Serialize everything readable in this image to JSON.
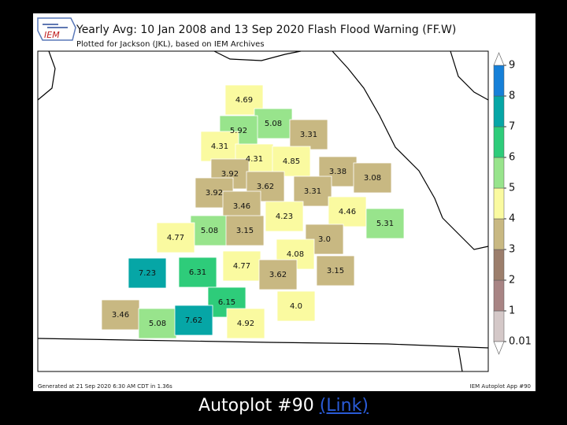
{
  "header": {
    "title": "Yearly Avg: 10 Jan 2008 and 13 Sep 2020 Flash Flood Warning (FF.W)",
    "subtitle": "Plotted for Jackson (JKL), based on IEM Archives",
    "logo": "IEM"
  },
  "map": {
    "counties": [
      {
        "label": "4.69",
        "color": "#fafaa0"
      },
      {
        "label": "5.08",
        "color": "#98e48c"
      },
      {
        "label": "5.92",
        "color": "#98e48c"
      },
      {
        "label": "3.31",
        "color": "#c8b882"
      },
      {
        "label": "4.31",
        "color": "#fafaa0"
      },
      {
        "label": "4.31",
        "color": "#fafaa0"
      },
      {
        "label": "4.85",
        "color": "#fafaa0"
      },
      {
        "label": "3.38",
        "color": "#c8b882"
      },
      {
        "label": "3.08",
        "color": "#c8b882"
      },
      {
        "label": "3.92",
        "color": "#c8b882"
      },
      {
        "label": "3.62",
        "color": "#c8b882"
      },
      {
        "label": "3.92",
        "color": "#c8b882"
      },
      {
        "label": "3.31",
        "color": "#c8b882"
      },
      {
        "label": "3.46",
        "color": "#c8b882"
      },
      {
        "label": "4.23",
        "color": "#fafaa0"
      },
      {
        "label": "4.46",
        "color": "#fafaa0"
      },
      {
        "label": "5.31",
        "color": "#98e48c"
      },
      {
        "label": "5.08",
        "color": "#98e48c"
      },
      {
        "label": "3.15",
        "color": "#c8b882"
      },
      {
        "label": "4.77",
        "color": "#fafaa0"
      },
      {
        "label": "3.0",
        "color": "#c8b882"
      },
      {
        "label": "4.08",
        "color": "#fafaa0"
      },
      {
        "label": "4.77",
        "color": "#fafaa0"
      },
      {
        "label": "7.23",
        "color": "#06a6a6"
      },
      {
        "label": "6.31",
        "color": "#2ecc7a"
      },
      {
        "label": "3.62",
        "color": "#c8b882"
      },
      {
        "label": "3.15",
        "color": "#c8b882"
      },
      {
        "label": "6.15",
        "color": "#2ecc7a"
      },
      {
        "label": "3.46",
        "color": "#c8b882"
      },
      {
        "label": "5.08",
        "color": "#98e48c"
      },
      {
        "label": "7.62",
        "color": "#06a6a6"
      },
      {
        "label": "4.0",
        "color": "#fafaa0"
      },
      {
        "label": "4.92",
        "color": "#fafaa0"
      }
    ]
  },
  "colorbar": {
    "ticks": [
      "0.01",
      "1",
      "2",
      "3",
      "4",
      "5",
      "6",
      "7",
      "8",
      "9"
    ],
    "colors": [
      "#d4c8c8",
      "#a88484",
      "#9c7e6c",
      "#c8b882",
      "#fafaa0",
      "#98e48c",
      "#2ecc7a",
      "#06a6a6",
      "#1680d8"
    ]
  },
  "footer": {
    "left": "Generated at 21 Sep 2020 6:30 AM CDT in 1.36s",
    "right": "IEM Autoplot App #90"
  },
  "caption": {
    "text": "Autoplot #90",
    "link": "(Link)"
  }
}
